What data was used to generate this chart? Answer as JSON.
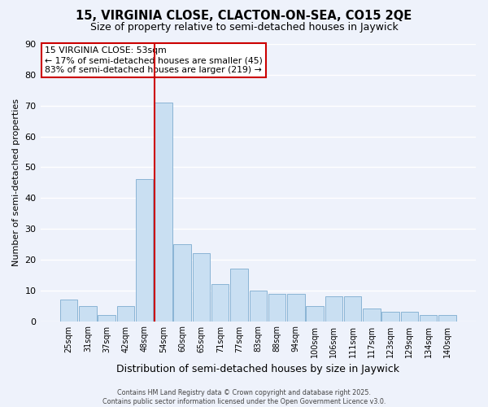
{
  "title_line1": "15, VIRGINIA CLOSE, CLACTON-ON-SEA, CO15 2QE",
  "title_line2": "Size of property relative to semi-detached houses in Jaywick",
  "xlabel": "Distribution of semi-detached houses by size in Jaywick",
  "ylabel": "Number of semi-detached properties",
  "bar_labels": [
    "25sqm",
    "31sqm",
    "37sqm",
    "42sqm",
    "48sqm",
    "54sqm",
    "60sqm",
    "65sqm",
    "71sqm",
    "77sqm",
    "83sqm",
    "88sqm",
    "94sqm",
    "100sqm",
    "106sqm",
    "111sqm",
    "117sqm",
    "123sqm",
    "129sqm",
    "134sqm",
    "140sqm"
  ],
  "bar_values": [
    7,
    5,
    2,
    5,
    46,
    71,
    25,
    22,
    12,
    17,
    10,
    9,
    9,
    5,
    8,
    8,
    4,
    3,
    3,
    2,
    2
  ],
  "bar_color": "#c9dff2",
  "bar_edge_color": "#8ab4d4",
  "background_color": "#eef2fb",
  "grid_color": "#ffffff",
  "vline_index": 5,
  "vline_color": "#cc0000",
  "ylim": [
    0,
    90
  ],
  "yticks": [
    0,
    10,
    20,
    30,
    40,
    50,
    60,
    70,
    80,
    90
  ],
  "annotation_title": "15 VIRGINIA CLOSE: 53sqm",
  "annotation_line1": "← 17% of semi-detached houses are smaller (45)",
  "annotation_line2": "83% of semi-detached houses are larger (219) →",
  "footer_line1": "Contains HM Land Registry data © Crown copyright and database right 2025.",
  "footer_line2": "Contains public sector information licensed under the Open Government Licence v3.0."
}
